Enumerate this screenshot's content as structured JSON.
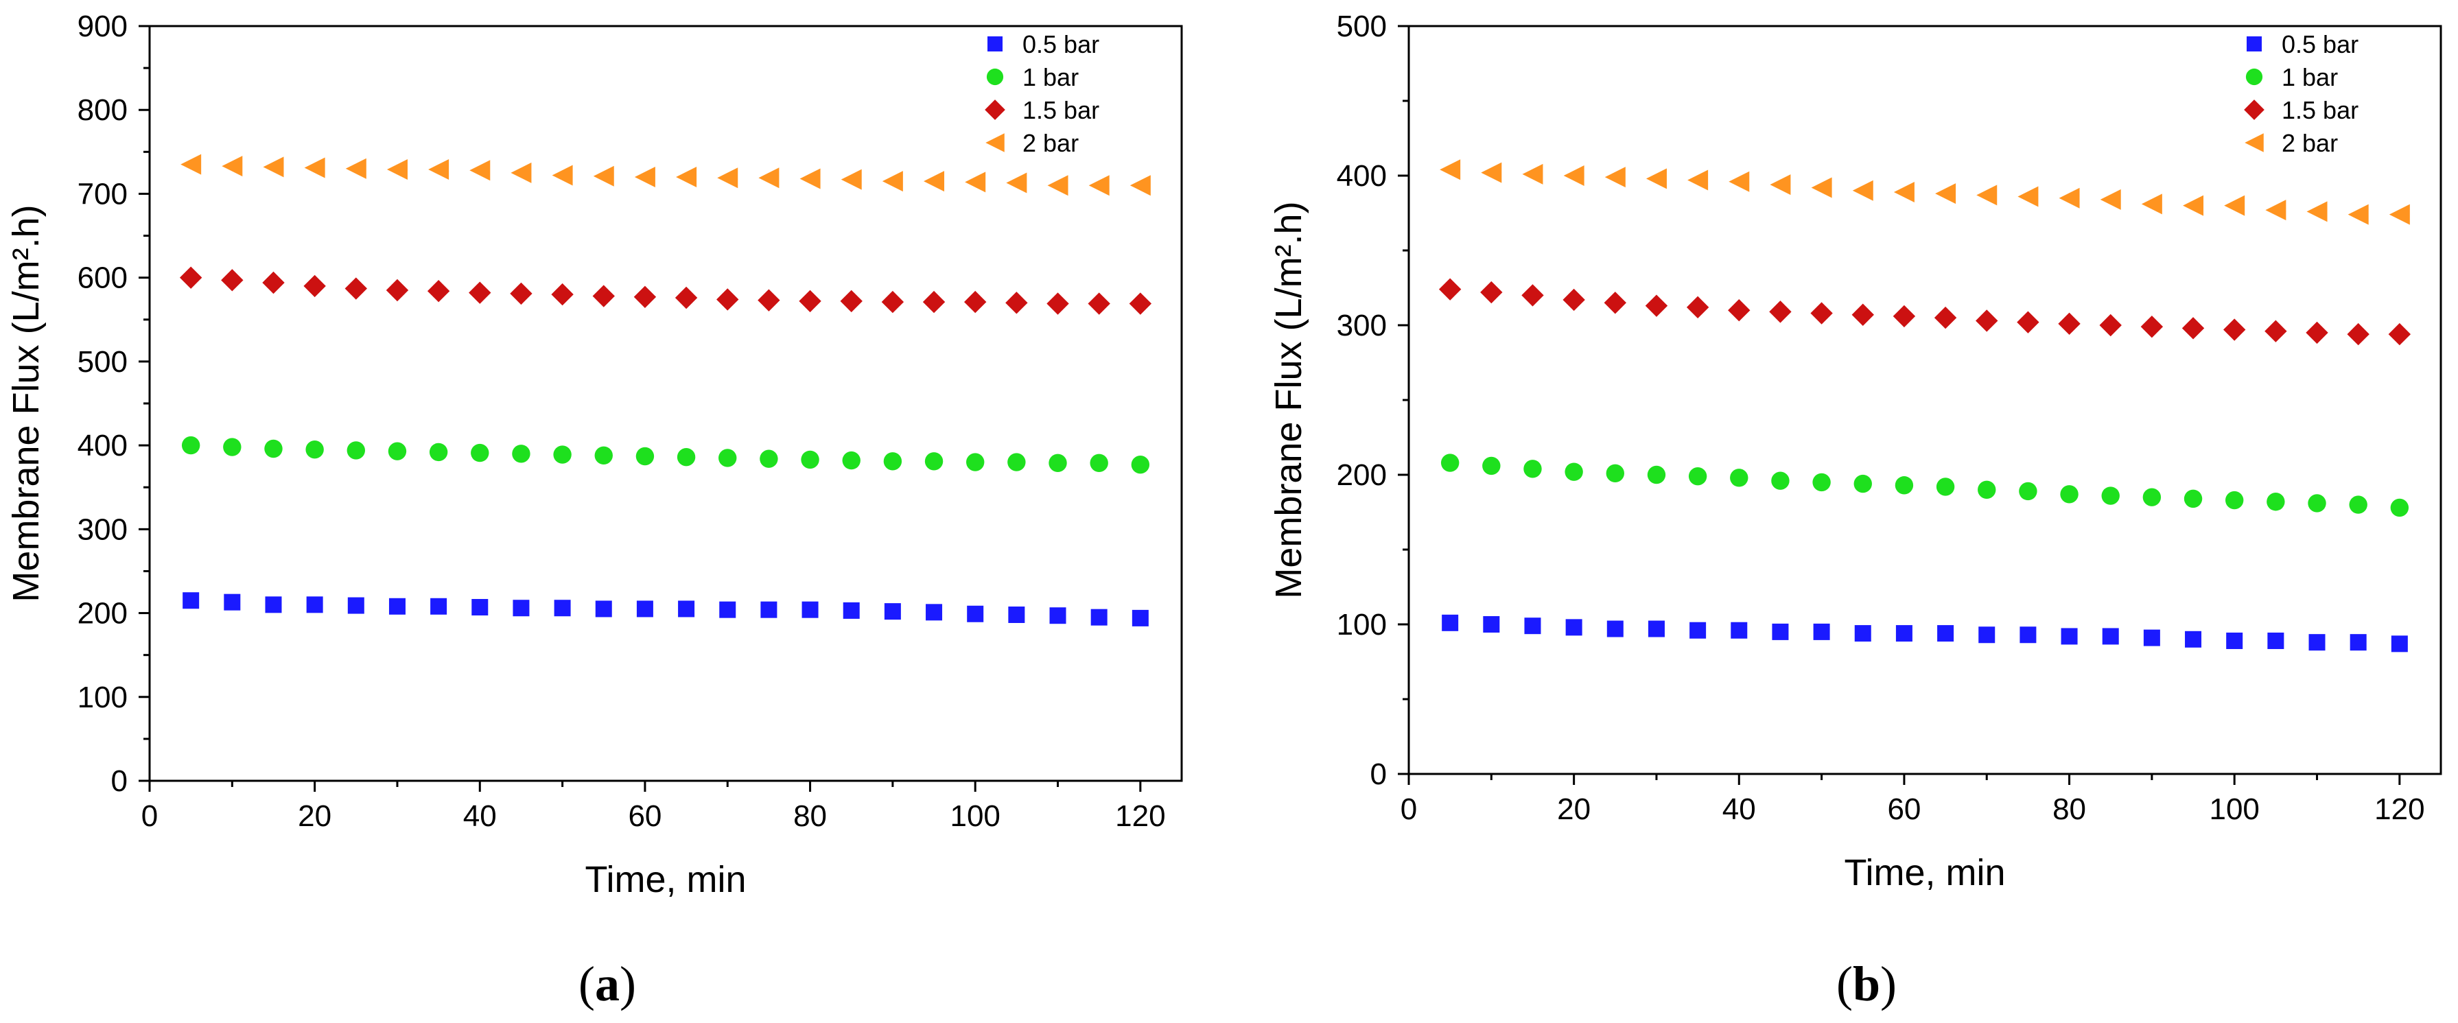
{
  "chart_data": [
    {
      "type": "scatter",
      "panel_label": "(a)",
      "panel_letter": "a",
      "xlabel": "Time, min",
      "ylabel": "Membrane Flux (L/m².h)",
      "xlim": [
        0,
        125
      ],
      "ylim": [
        0,
        900
      ],
      "xticks": [
        0,
        20,
        40,
        60,
        80,
        100,
        120
      ],
      "yticks": [
        0,
        100,
        200,
        300,
        400,
        500,
        600,
        700,
        800,
        900
      ],
      "x": [
        5,
        10,
        15,
        20,
        25,
        30,
        35,
        40,
        45,
        50,
        55,
        60,
        65,
        70,
        75,
        80,
        85,
        90,
        95,
        100,
        105,
        110,
        115,
        120
      ],
      "legend_position": "top-right",
      "series": [
        {
          "name": "0.5 bar",
          "marker": "square",
          "color": "#1a1aff",
          "values": [
            215,
            213,
            210,
            210,
            209,
            208,
            208,
            207,
            206,
            206,
            205,
            205,
            205,
            204,
            204,
            204,
            203,
            202,
            201,
            199,
            198,
            197,
            195,
            194
          ]
        },
        {
          "name": "1 bar",
          "marker": "circle",
          "color": "#1ee01e",
          "values": [
            400,
            398,
            396,
            395,
            394,
            393,
            392,
            391,
            390,
            389,
            388,
            387,
            386,
            385,
            384,
            383,
            382,
            381,
            381,
            380,
            380,
            379,
            379,
            377
          ]
        },
        {
          "name": "1.5 bar",
          "marker": "diamond",
          "color": "#cc1111",
          "values": [
            600,
            597,
            594,
            590,
            587,
            585,
            584,
            582,
            581,
            580,
            578,
            577,
            576,
            574,
            573,
            572,
            572,
            571,
            571,
            571,
            570,
            569,
            569,
            569
          ]
        },
        {
          "name": "2 bar",
          "marker": "triangle-left",
          "color": "#ff9420",
          "values": [
            735,
            733,
            732,
            731,
            730,
            729,
            729,
            728,
            725,
            722,
            721,
            720,
            720,
            719,
            719,
            718,
            717,
            715,
            715,
            714,
            713,
            710,
            710,
            710
          ]
        }
      ]
    },
    {
      "type": "scatter",
      "panel_label": "(b)",
      "panel_letter": "b",
      "xlabel": "Time, min",
      "ylabel": "Membrane Flux (L/m².h)",
      "xlim": [
        0,
        125
      ],
      "ylim": [
        0,
        500
      ],
      "xticks": [
        0,
        20,
        40,
        60,
        80,
        100,
        120
      ],
      "yticks": [
        0,
        100,
        200,
        300,
        400,
        500
      ],
      "x": [
        5,
        10,
        15,
        20,
        25,
        30,
        35,
        40,
        45,
        50,
        55,
        60,
        65,
        70,
        75,
        80,
        85,
        90,
        95,
        100,
        105,
        110,
        115,
        120
      ],
      "legend_position": "top-right",
      "series": [
        {
          "name": "0.5 bar",
          "marker": "square",
          "color": "#1a1aff",
          "values": [
            101,
            100,
            99,
            98,
            97,
            97,
            96,
            96,
            95,
            95,
            94,
            94,
            94,
            93,
            93,
            92,
            92,
            91,
            90,
            89,
            89,
            88,
            88,
            87
          ]
        },
        {
          "name": "1 bar",
          "marker": "circle",
          "color": "#1ee01e",
          "values": [
            208,
            206,
            204,
            202,
            201,
            200,
            199,
            198,
            196,
            195,
            194,
            193,
            192,
            190,
            189,
            187,
            186,
            185,
            184,
            183,
            182,
            181,
            180,
            178
          ]
        },
        {
          "name": "1.5 bar",
          "marker": "diamond",
          "color": "#cc1111",
          "values": [
            324,
            322,
            320,
            317,
            315,
            313,
            312,
            310,
            309,
            308,
            307,
            306,
            305,
            303,
            302,
            301,
            300,
            299,
            298,
            297,
            296,
            295,
            294,
            294
          ]
        },
        {
          "name": "2 bar",
          "marker": "triangle-left",
          "color": "#ff9420",
          "values": [
            404,
            402,
            401,
            400,
            399,
            398,
            397,
            396,
            394,
            392,
            390,
            389,
            388,
            387,
            386,
            385,
            384,
            381,
            380,
            380,
            377,
            376,
            374,
            374
          ]
        }
      ]
    }
  ]
}
